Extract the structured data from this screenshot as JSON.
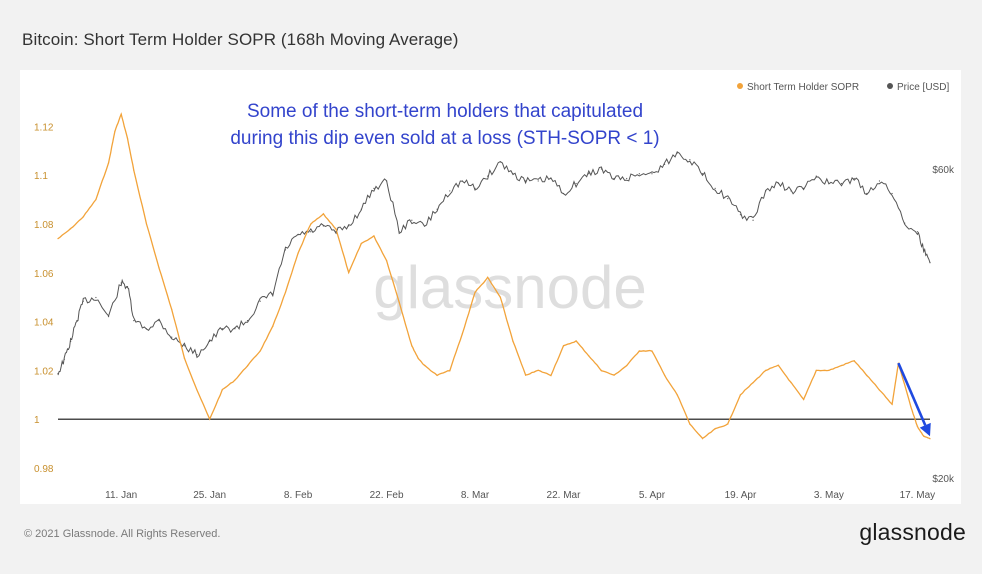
{
  "page": {
    "title": "Bitcoin: Short Term Holder SOPR (168h Moving Average)",
    "copyright": "© 2021 Glassnode. All Rights Reserved.",
    "logo": "glassnode",
    "watermark": "glassnode"
  },
  "chart_data": {
    "type": "line",
    "title": "Bitcoin: Short Term Holder SOPR (168h Moving Average)",
    "annotation": [
      "Some of the short-term holders that capitulated",
      "during this dip even sold at a loss (STH-SOPR < 1)"
    ],
    "legend": {
      "placement": "top-right",
      "entries": [
        "Short Term Holder SOPR",
        "Price [USD]"
      ]
    },
    "x_ticks": [
      "11. Jan",
      "25. Jan",
      "8. Feb",
      "22. Feb",
      "8. Mar",
      "22. Mar",
      "5. Apr",
      "19. Apr",
      "3. May",
      "17. May"
    ],
    "x_range_days": [
      0,
      138
    ],
    "x_tick_days": [
      10,
      24,
      38,
      52,
      66,
      80,
      94,
      108,
      122,
      136
    ],
    "y_left": {
      "range": [
        0.98,
        1.13
      ],
      "ticks": [
        "0.98",
        "1",
        "1.02",
        "1.04",
        "1.06",
        "1.08",
        "1.1",
        "1.12"
      ],
      "tick_values": [
        0.98,
        1.0,
        1.02,
        1.04,
        1.06,
        1.08,
        1.1,
        1.12
      ]
    },
    "y_right": {
      "scale": "log",
      "range": [
        20000,
        74000
      ],
      "ticks": [
        "$20k",
        "$60k"
      ],
      "tick_values": [
        20000,
        60000
      ]
    },
    "reference_line": {
      "value": 1.0,
      "color": "#111111"
    },
    "arrow": {
      "from": [
        133,
        1.023
      ],
      "to": [
        138,
        0.993
      ],
      "color": "#1f49e0"
    },
    "grid": false,
    "series": [
      {
        "name": "Short Term Holder SOPR",
        "axis": "left",
        "color": "#f2a33a",
        "x": [
          0,
          2,
          4,
          6,
          8,
          9,
          10,
          11,
          12,
          14,
          16,
          18,
          20,
          22,
          24,
          26,
          28,
          30,
          32,
          34,
          36,
          38,
          40,
          42,
          44,
          46,
          48,
          50,
          52,
          54,
          56,
          57,
          58,
          60,
          62,
          64,
          66,
          68,
          70,
          72,
          74,
          76,
          78,
          80,
          82,
          84,
          86,
          88,
          90,
          92,
          94,
          96,
          98,
          100,
          102,
          104,
          106,
          108,
          110,
          112,
          114,
          116,
          118,
          120,
          122,
          124,
          126,
          128,
          130,
          132,
          133,
          135,
          136,
          137,
          138
        ],
        "y": [
          1.074,
          1.078,
          1.083,
          1.09,
          1.105,
          1.118,
          1.125,
          1.115,
          1.102,
          1.08,
          1.062,
          1.045,
          1.025,
          1.012,
          1.0,
          1.012,
          1.016,
          1.022,
          1.028,
          1.038,
          1.052,
          1.068,
          1.08,
          1.084,
          1.078,
          1.06,
          1.072,
          1.075,
          1.065,
          1.048,
          1.03,
          1.025,
          1.022,
          1.018,
          1.02,
          1.035,
          1.052,
          1.058,
          1.05,
          1.032,
          1.018,
          1.02,
          1.018,
          1.03,
          1.032,
          1.026,
          1.02,
          1.018,
          1.022,
          1.028,
          1.028,
          1.018,
          1.01,
          0.998,
          0.992,
          0.996,
          0.998,
          1.01,
          1.015,
          1.02,
          1.022,
          1.015,
          1.008,
          1.02,
          1.02,
          1.022,
          1.024,
          1.018,
          1.012,
          1.006,
          1.023,
          1.005,
          0.997,
          0.993,
          0.992
        ]
      },
      {
        "name": "Price [USD]",
        "axis": "right",
        "color": "#555555",
        "x": [
          0,
          1,
          2,
          3,
          4,
          6,
          8,
          10,
          11,
          12,
          14,
          16,
          18,
          20,
          22,
          24,
          26,
          28,
          30,
          32,
          34,
          36,
          38,
          40,
          42,
          44,
          46,
          48,
          50,
          52,
          54,
          56,
          58,
          60,
          62,
          64,
          66,
          68,
          70,
          72,
          74,
          76,
          78,
          80,
          82,
          84,
          86,
          88,
          90,
          92,
          94,
          96,
          98,
          100,
          102,
          104,
          106,
          108,
          110,
          112,
          114,
          116,
          118,
          120,
          122,
          124,
          126,
          128,
          130,
          132,
          134,
          136,
          137,
          138
        ],
        "y": [
          29000,
          30500,
          32500,
          35000,
          37500,
          38000,
          35500,
          40000,
          39500,
          35000,
          34000,
          35000,
          33000,
          32000,
          31000,
          32500,
          34000,
          34000,
          35000,
          37500,
          38500,
          45000,
          47500,
          48000,
          49000,
          48000,
          49000,
          52000,
          56000,
          57500,
          48000,
          50000,
          49000,
          52000,
          55500,
          57500,
          56000,
          58500,
          61500,
          59000,
          57500,
          57500,
          58000,
          55000,
          57000,
          59000,
          60000,
          58000,
          58000,
          59000,
          59000,
          61000,
          63500,
          62000,
          59000,
          56000,
          54000,
          51000,
          50000,
          55500,
          57000,
          55500,
          56000,
          58500,
          57000,
          57000,
          58000,
          55000,
          57500,
          55000,
          49500,
          48000,
          45000,
          43000
        ]
      }
    ]
  }
}
